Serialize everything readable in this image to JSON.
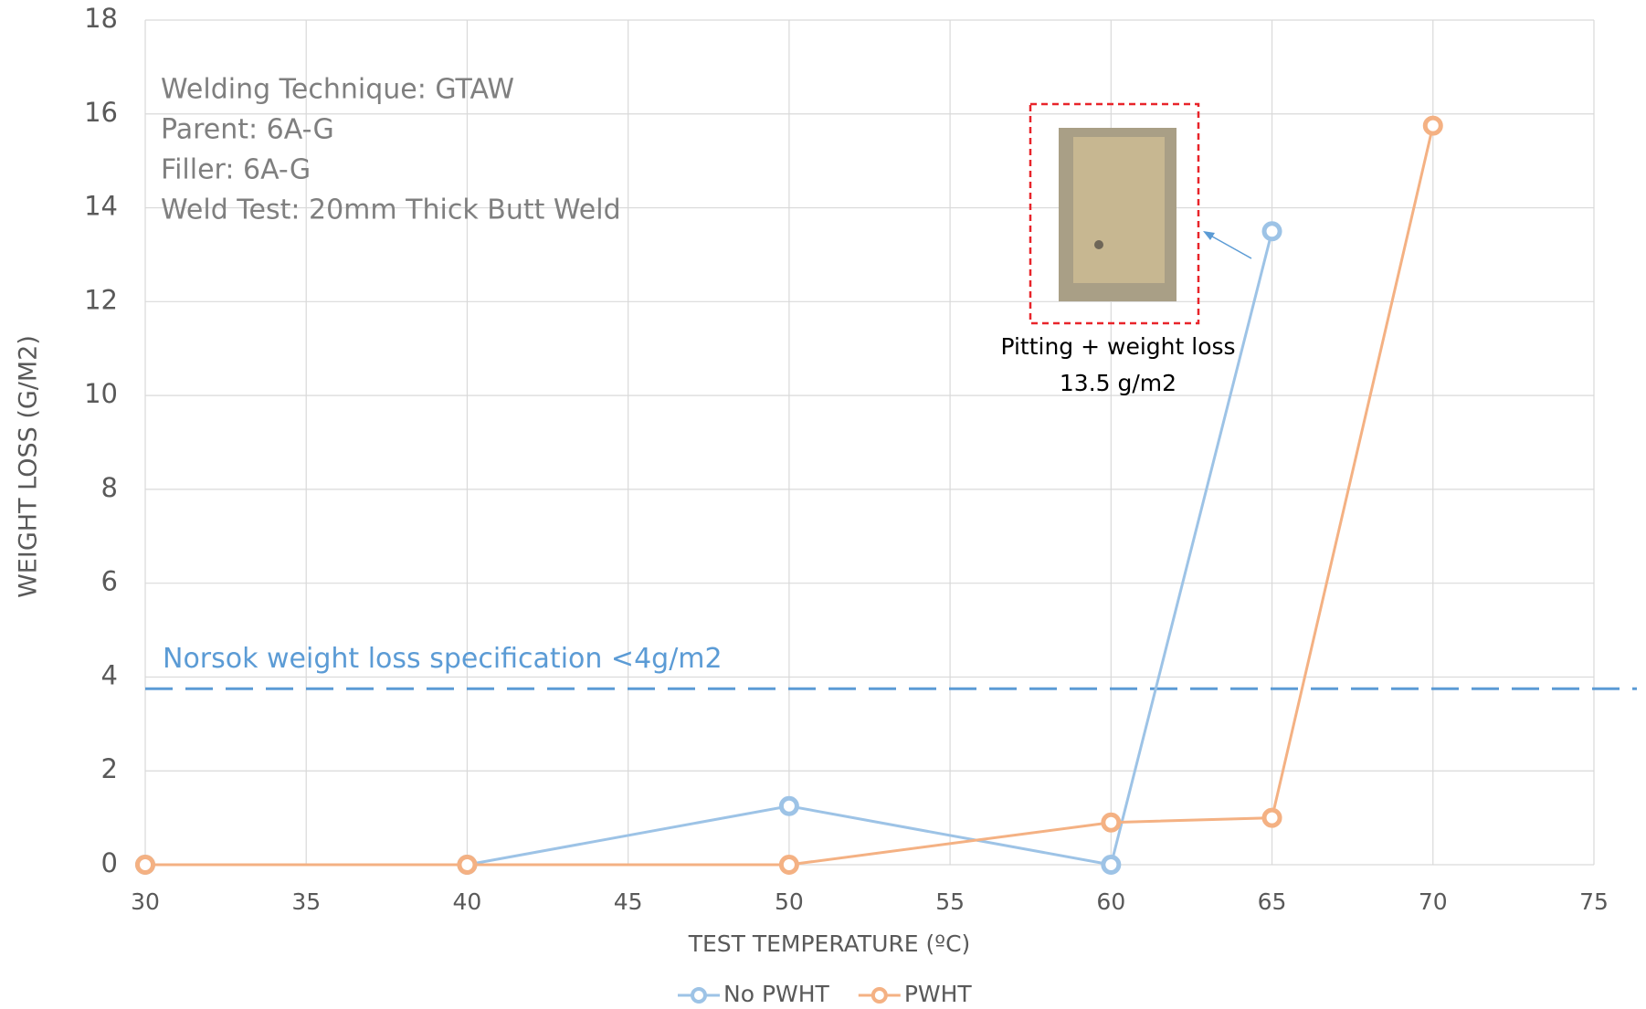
{
  "chart_data": {
    "type": "line",
    "x_label": "TEST TEMPERATURE (ºC)",
    "y_label": "WEIGHT LOSS (G/M2)",
    "xlim": [
      30,
      75
    ],
    "xticks": [
      30,
      35,
      40,
      45,
      50,
      55,
      60,
      65,
      70,
      75
    ],
    "ylim": [
      0,
      18
    ],
    "yticks": [
      0,
      2,
      4,
      6,
      8,
      10,
      12,
      14,
      16,
      18
    ],
    "grid": true,
    "legend": "bottom",
    "series": [
      {
        "name": "No PWHT",
        "color": "#9dc3e6",
        "x": [
          30,
          40,
          50,
          60,
          65
        ],
        "values": [
          0,
          0,
          1.25,
          0,
          13.5
        ]
      },
      {
        "name": "PWHT",
        "color": "#f4b183",
        "x": [
          30,
          40,
          50,
          60,
          65,
          70
        ],
        "values": [
          0,
          0,
          0,
          0.9,
          1.0,
          15.75
        ]
      }
    ],
    "info_text": [
      "Welding Technique: GTAW",
      "Parent: 6A-G",
      "Filler: 6A-G",
      "Weld Test: 20mm Thick Butt Weld"
    ],
    "reference_line": {
      "label": "Norsok weight loss specification <4g/m2",
      "value": 3.75,
      "color": "#5b9bd5"
    },
    "annotation": [
      "Pitting + weight loss",
      "13.5 g/m2"
    ]
  }
}
